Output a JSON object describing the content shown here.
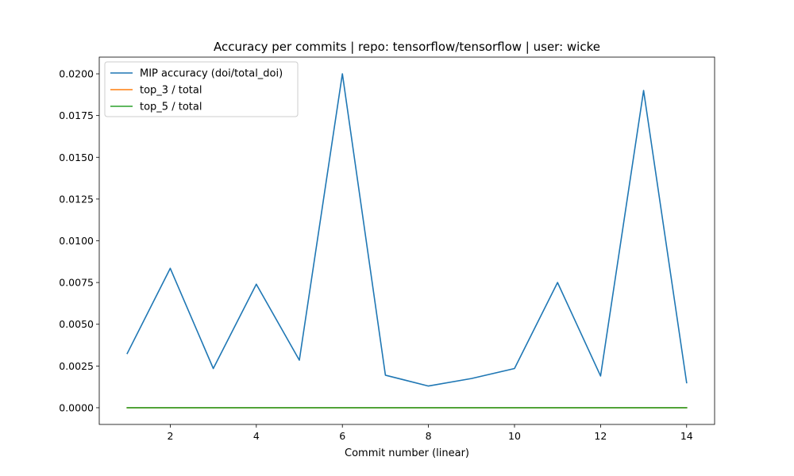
{
  "chart_data": {
    "type": "line",
    "title": "Accuracy per commits | repo: tensorflow/tensorflow | user: wicke",
    "xlabel": "Commit number (linear)",
    "ylabel": "",
    "xlim": [
      0.35,
      14.65
    ],
    "ylim": [
      -0.001,
      0.021
    ],
    "x": [
      1,
      2,
      3,
      4,
      5,
      6,
      7,
      8,
      9,
      10,
      11,
      12,
      13,
      14
    ],
    "xticks": [
      2,
      4,
      6,
      8,
      10,
      12,
      14
    ],
    "xtick_labels": [
      "2",
      "4",
      "6",
      "8",
      "10",
      "12",
      "14"
    ],
    "yticks": [
      0,
      0.0025,
      0.005,
      0.0075,
      0.01,
      0.0125,
      0.015,
      0.0175,
      0.02
    ],
    "ytick_labels": [
      "0.0000",
      "0.0025",
      "0.0050",
      "0.0075",
      "0.0100",
      "0.0125",
      "0.0150",
      "0.0175",
      "0.0200"
    ],
    "grid": false,
    "legend_position": "top-left",
    "series": [
      {
        "name": "MIP accuracy (doi/total_doi)",
        "color": "#1f77b4",
        "values": [
          0.00325,
          0.00835,
          0.00235,
          0.0074,
          0.00285,
          0.02,
          0.00195,
          0.0013,
          0.00175,
          0.00235,
          0.0075,
          0.0019,
          0.019,
          0.0015
        ]
      },
      {
        "name": "top_3 / total",
        "color": "#ff7f0e",
        "values": [
          0,
          0,
          0,
          0,
          0,
          0,
          0,
          0,
          0,
          0,
          0,
          0,
          0,
          0
        ]
      },
      {
        "name": "top_5 / total",
        "color": "#2ca02c",
        "values": [
          0,
          0,
          0,
          0,
          0,
          0,
          0,
          0,
          0,
          0,
          0,
          0,
          0,
          0
        ]
      }
    ]
  }
}
